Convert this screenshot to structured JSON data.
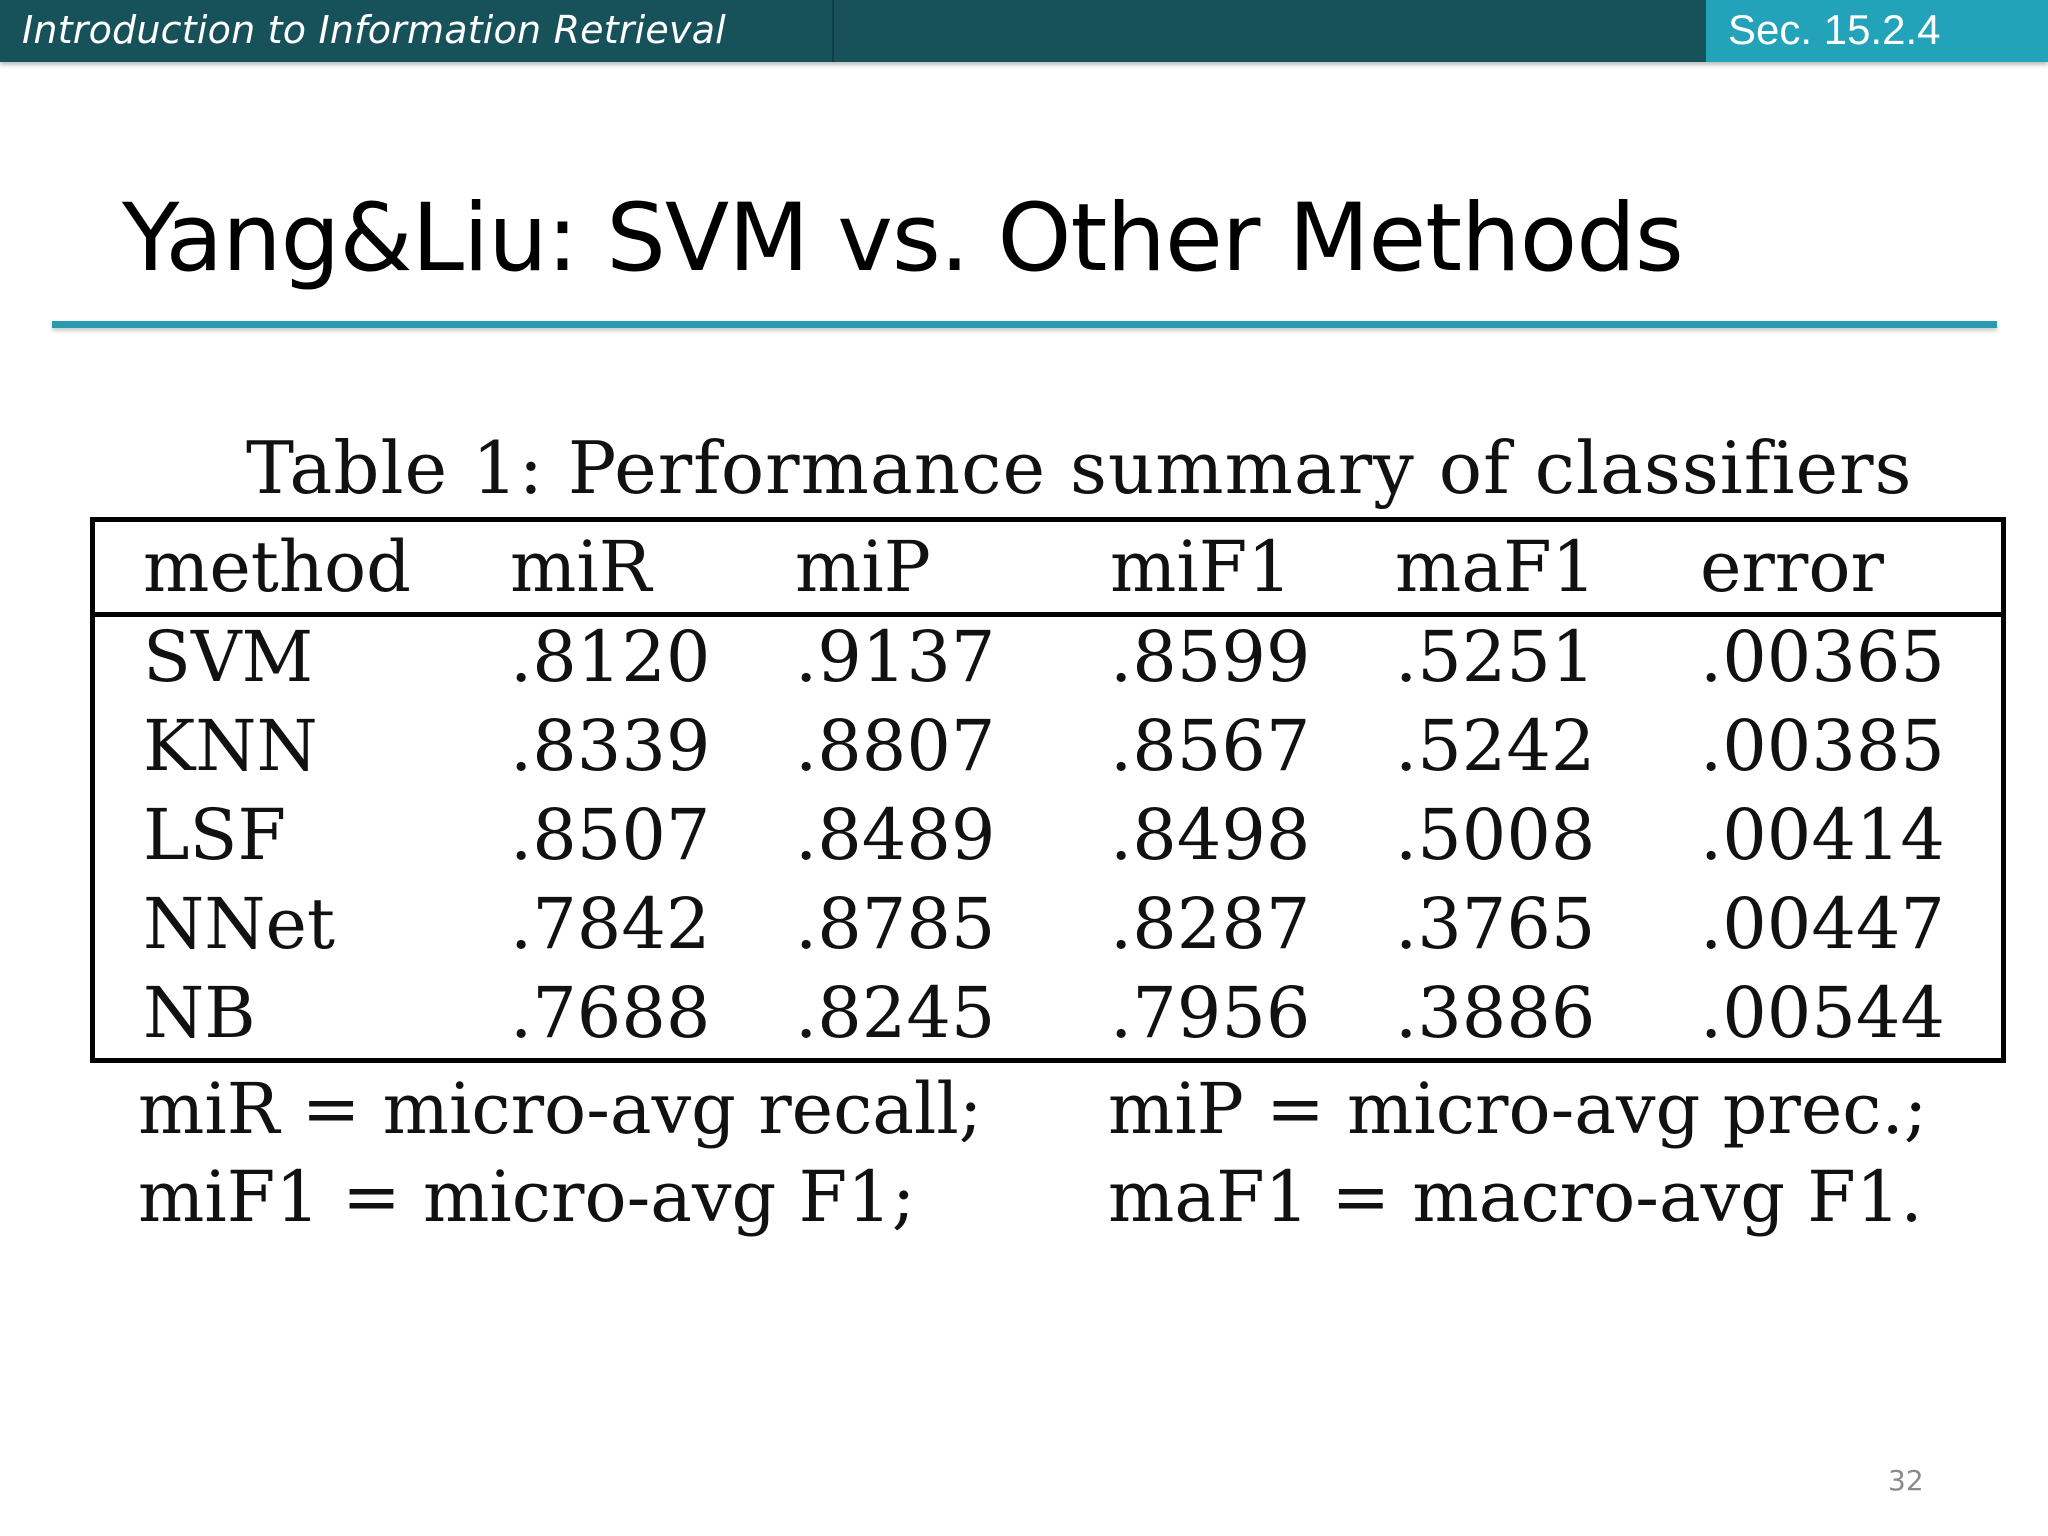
{
  "header": {
    "course_title": "Introduction to Information Retrieval",
    "section": "Sec. 15.2.4",
    "bar_color": "#17515a",
    "accent_color": "#22a3b9"
  },
  "slide": {
    "title": "Yang&Liu: SVM vs. Other Methods",
    "page_number": "32"
  },
  "table": {
    "caption": "Table 1: Performance summary of classifiers",
    "columns": [
      "method",
      "miR",
      "miP",
      "miF1",
      "maF1",
      "error"
    ],
    "rows": [
      [
        "SVM",
        ".8120",
        ".9137",
        ".8599",
        ".5251",
        ".00365"
      ],
      [
        "KNN",
        ".8339",
        ".8807",
        ".8567",
        ".5242",
        ".00385"
      ],
      [
        "LSF",
        ".8507",
        ".8489",
        ".8498",
        ".5008",
        ".00414"
      ],
      [
        "NNet",
        ".7842",
        ".8785",
        ".8287",
        ".3765",
        ".00447"
      ],
      [
        "NB",
        ".7688",
        ".8245",
        ".7956",
        ".3886",
        ".00544"
      ]
    ]
  },
  "footnotes": {
    "line1_left": "miR = micro-avg recall;",
    "line1_right": "miP = micro-avg prec.;",
    "line2_left": "miF1 = micro-avg F1;",
    "line2_right": "maF1 = macro-avg F1."
  }
}
